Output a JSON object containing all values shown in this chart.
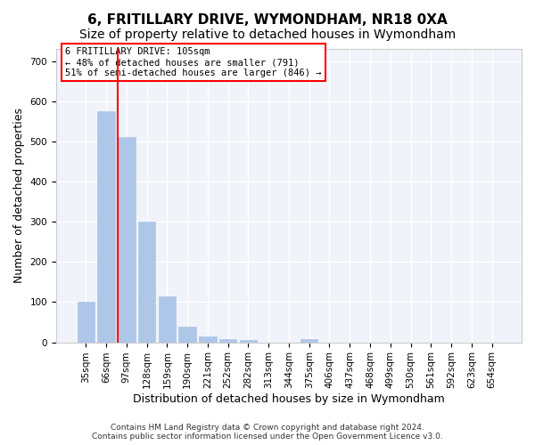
{
  "title": "6, FRITILLARY DRIVE, WYMONDHAM, NR18 0XA",
  "subtitle": "Size of property relative to detached houses in Wymondham",
  "xlabel": "Distribution of detached houses by size in Wymondham",
  "ylabel": "Number of detached properties",
  "categories": [
    "35sqm",
    "66sqm",
    "97sqm",
    "128sqm",
    "159sqm",
    "190sqm",
    "221sqm",
    "252sqm",
    "282sqm",
    "313sqm",
    "344sqm",
    "375sqm",
    "406sqm",
    "437sqm",
    "468sqm",
    "499sqm",
    "530sqm",
    "561sqm",
    "592sqm",
    "623sqm",
    "654sqm"
  ],
  "values": [
    100,
    575,
    510,
    300,
    115,
    38,
    15,
    8,
    5,
    0,
    0,
    8,
    0,
    0,
    0,
    0,
    0,
    0,
    0,
    0,
    0
  ],
  "bar_color": "#aec6e8",
  "bar_edge_color": "#aec6e8",
  "property_line_x": 2.0,
  "property_line_color": "red",
  "annotation_text": "6 FRITILLARY DRIVE: 105sqm\n← 48% of detached houses are smaller (791)\n51% of semi-detached houses are larger (846) →",
  "annotation_box_color": "white",
  "annotation_box_edge_color": "red",
  "ylim": [
    0,
    730
  ],
  "yticks": [
    0,
    100,
    200,
    300,
    400,
    500,
    600,
    700
  ],
  "footer": "Contains HM Land Registry data © Crown copyright and database right 2024.\nContains public sector information licensed under the Open Government Licence v3.0.",
  "bg_color": "#f0f4fa",
  "grid_color": "white",
  "title_fontsize": 11,
  "subtitle_fontsize": 10,
  "tick_fontsize": 7.5,
  "label_fontsize": 9
}
